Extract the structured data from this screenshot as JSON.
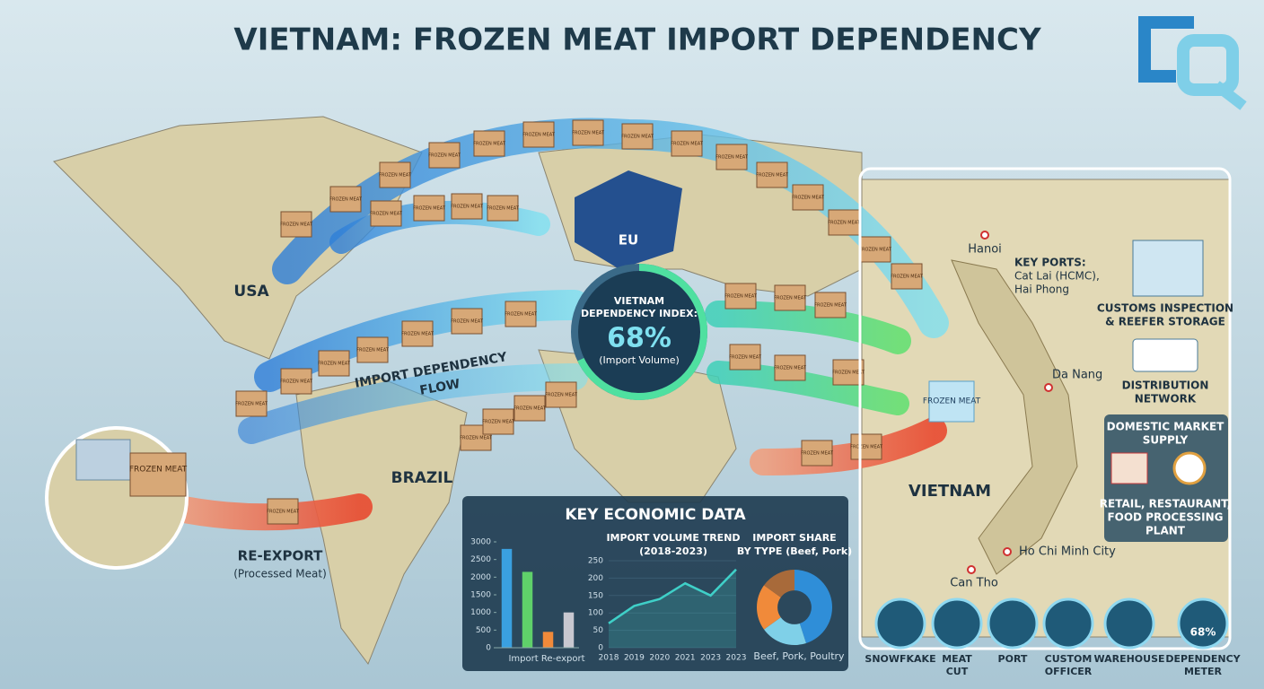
{
  "header": {
    "title": "VIETNAM: FROZEN MEAT IMPORT DEPENDENCY"
  },
  "regions": {
    "usa": "USA",
    "eu": "EU",
    "brazil": "BRAZIL",
    "vietnam": "VIETNAM"
  },
  "box_label": "FROZEN MEAT",
  "flow_label": [
    "IMPORT DEPENDENCY",
    "FLOW"
  ],
  "index": {
    "label": [
      "VIETNAM",
      "DEPENDENCY INDEX:"
    ],
    "value": 68,
    "value_label": "68%",
    "note": "(Import Volume)"
  },
  "re_export": {
    "label": "RE-EXPORT",
    "note": "(Processed Meat)"
  },
  "cities": [
    "Hanoi",
    "Da Nang",
    "Ho Chi Minh City",
    "Can Tho"
  ],
  "ports": {
    "label": "KEY PORTS:",
    "lines": [
      "Cat Lai (HCMC),",
      "Hai Phong"
    ]
  },
  "side_panel": {
    "customs": [
      "CUSTOMS INSPECTION",
      "& REEFER STORAGE"
    ],
    "distribution": [
      "DISTRIBUTION",
      "NETWORK"
    ],
    "domestic": [
      "DOMESTIC MARKET",
      "SUPPLY"
    ],
    "retail": [
      "RETAIL, RESTAURANT,",
      "FOOD PROCESSING",
      "PLANT"
    ]
  },
  "icons": [
    {
      "label": [
        "SNOWFKAKE"
      ]
    },
    {
      "label": [
        "MEAT",
        "CUT"
      ]
    },
    {
      "label": [
        "PORT"
      ]
    },
    {
      "label": [
        "CUSTOM",
        "OFFICER"
      ]
    },
    {
      "label": [
        "WAREHOUSE"
      ]
    },
    {
      "label": [
        "DEPENDENCY",
        "METER"
      ],
      "value_label": "68%"
    }
  ],
  "economic_panel": {
    "title": "KEY ECONOMIC DATA"
  },
  "chart_data": [
    {
      "type": "bar",
      "categories": [
        null,
        null,
        null,
        null
      ],
      "xlabel": "Import Re-export",
      "values": [
        2800,
        2150,
        450,
        1000
      ],
      "colors": [
        "#3aa0e0",
        "#5fd06a",
        "#f08a3a",
        "#c8c8d0"
      ],
      "ylim": [
        0,
        3000
      ],
      "yticks": [
        0,
        500,
        1000,
        1500,
        2000,
        2500,
        3000
      ]
    },
    {
      "type": "line",
      "title": [
        "IMPORT VOLUME TREND",
        "(2018-2023)"
      ],
      "categories": [
        "2018",
        "2019",
        "2020",
        "2021",
        "2023",
        "2023"
      ],
      "values": [
        70,
        120,
        140,
        185,
        150,
        225
      ],
      "color": "#3fd0c8",
      "ylim": [
        0,
        250
      ],
      "yticks": [
        0,
        50,
        100,
        150,
        200,
        250
      ]
    },
    {
      "type": "pie",
      "title": [
        "IMPORT SHARE",
        "BY TYPE (Beef, Pork)"
      ],
      "caption": "Beef, Pork, Poultry",
      "values": [
        45,
        20,
        20,
        15
      ],
      "colors": [
        "#2f8ed8",
        "#7fd0e8",
        "#f08a3a",
        "#a86a3a"
      ]
    }
  ]
}
